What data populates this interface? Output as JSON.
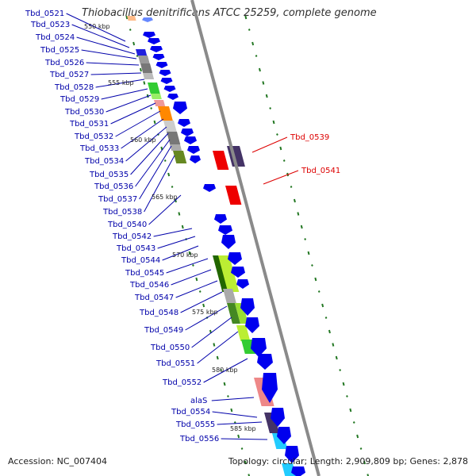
{
  "title": "Thiobacillus denitrificans ATCC 25259, complete genome",
  "accession": "Accession: NC_007404",
  "topology": "Topology: circular; Length: 2,909,809 bp; Genes: 2,878",
  "colors": {
    "gene_label": "#0000aa",
    "highlight_label": "#dd0000",
    "backbone": "#888888",
    "forward_cds": "#0000ee",
    "tick": "#227722"
  },
  "kbp_labels": [
    "550 kbp",
    "555 kbp",
    "560 kbp",
    "565 kbp",
    "570 kbp",
    "575 kbp",
    "580 kbp",
    "585 kbp"
  ],
  "left_labels": [
    "Tbd_0521",
    "Tbd_0523",
    "Tbd_0524",
    "Tbd_0525",
    "Tbd_0526",
    "Tbd_0527",
    "Tbd_0528",
    "Tbd_0529",
    "Tbd_0530",
    "Tbd_0531",
    "Tbd_0532",
    "Tbd_0533",
    "Tbd_0534",
    "Tbd_0535",
    "Tbd_0536",
    "Tbd_0537",
    "Tbd_0538",
    "Tbd_0540",
    "Tbd_0542",
    "Tbd_0543",
    "Tbd_0544",
    "Tbd_0545",
    "Tbd_0546",
    "Tbd_0547",
    "Tbd_0548",
    "Tbd_0549",
    "Tbd_0550",
    "Tbd_0551",
    "Tbd_0552",
    "alaS",
    "Tbd_0554",
    "Tbd_0555",
    "Tbd_0556"
  ],
  "right_labels": [
    "Tbd_0539",
    "Tbd_0541"
  ]
}
